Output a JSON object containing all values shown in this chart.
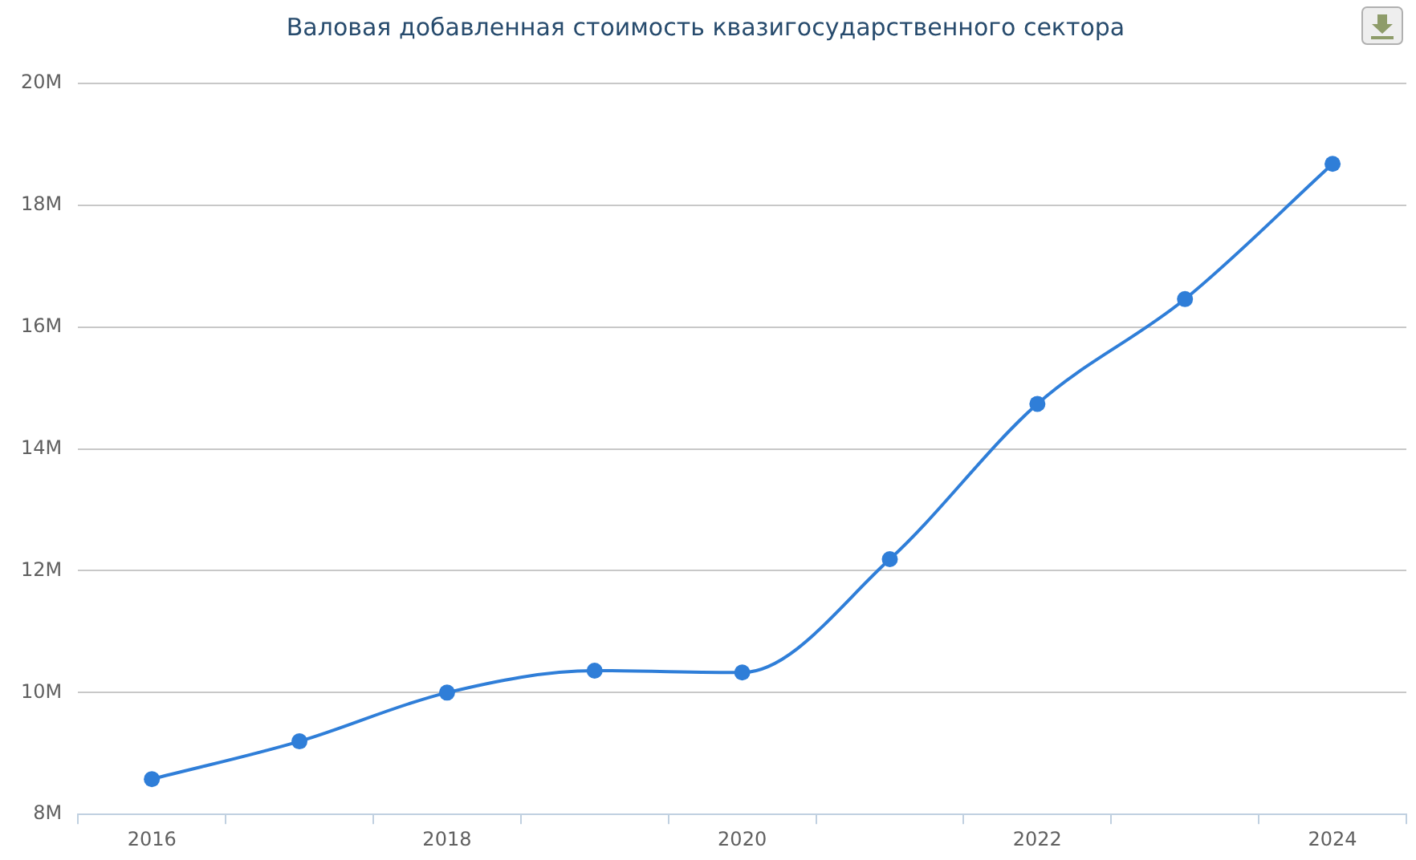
{
  "chart_data": {
    "type": "line",
    "title": "Валовая добавленная стоимость квазигосударственного сектора",
    "categories": [
      "2016",
      null,
      "2018",
      null,
      "2020",
      null,
      "2022",
      null,
      "2024"
    ],
    "values": [
      8.58,
      9.2,
      10.0,
      10.36,
      10.33,
      12.19,
      14.74,
      16.46,
      18.68
    ],
    "color": "#2f7ed8",
    "ylim": [
      8,
      20
    ],
    "yticks": [
      {
        "value": 8,
        "label": "8M"
      },
      {
        "value": 10,
        "label": "10M"
      },
      {
        "value": 12,
        "label": "12M"
      },
      {
        "value": 14,
        "label": "14M"
      },
      {
        "value": 16,
        "label": "16M"
      },
      {
        "value": 18,
        "label": "18M"
      },
      {
        "value": 20,
        "label": "20M"
      }
    ],
    "grid": "y",
    "marker": "circle"
  }
}
